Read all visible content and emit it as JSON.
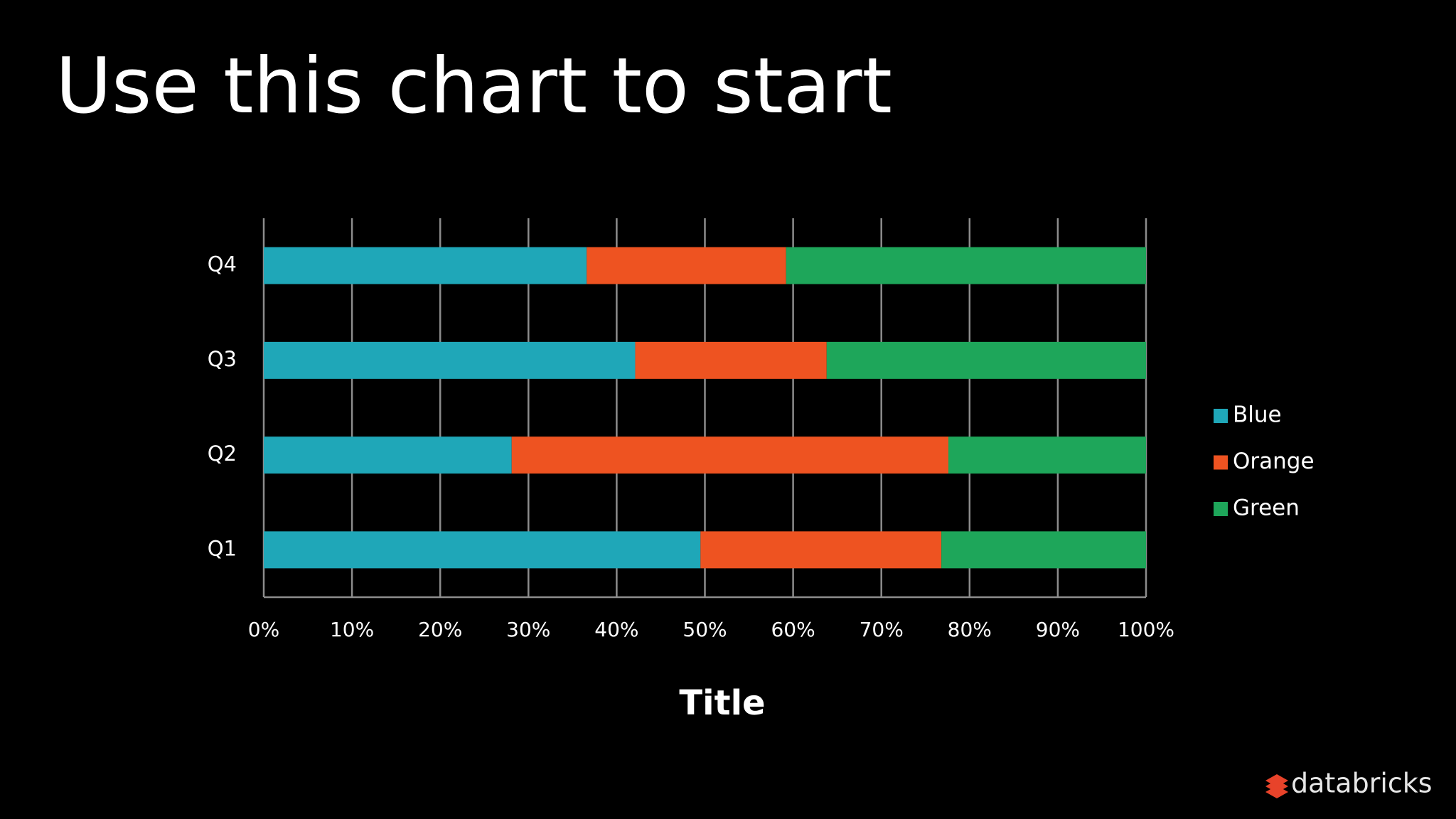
{
  "title": "Use this chart to start",
  "logo": "databricks",
  "chart_data": {
    "type": "stacked-horizontal-bar",
    "categories": [
      "Q1",
      "Q2",
      "Q3",
      "Q4"
    ],
    "series": [
      {
        "name": "Blue",
        "color": "#1fa7b8",
        "values": [
          49.5,
          28.1,
          42.1,
          36.6
        ]
      },
      {
        "name": "Orange",
        "color": "#ee5321",
        "values": [
          27.3,
          49.5,
          21.7,
          22.6
        ]
      },
      {
        "name": "Green",
        "color": "#1ea65a",
        "values": [
          23.2,
          22.4,
          36.2,
          40.8
        ]
      }
    ],
    "xlabel": "Title",
    "xlim": [
      0,
      100
    ],
    "xticks": [
      {
        "value": 0,
        "label": "0%"
      },
      {
        "value": 10,
        "label": "10%"
      },
      {
        "value": 20,
        "label": "20%"
      },
      {
        "value": 30,
        "label": "30%"
      },
      {
        "value": 40,
        "label": "40%"
      },
      {
        "value": 50,
        "label": "50%"
      },
      {
        "value": 60,
        "label": "60%"
      },
      {
        "value": 70,
        "label": "70%"
      },
      {
        "value": 80,
        "label": "80%"
      },
      {
        "value": 90,
        "label": "90%"
      },
      {
        "value": 100,
        "label": "100%"
      }
    ],
    "grid": true,
    "legend": "right"
  }
}
